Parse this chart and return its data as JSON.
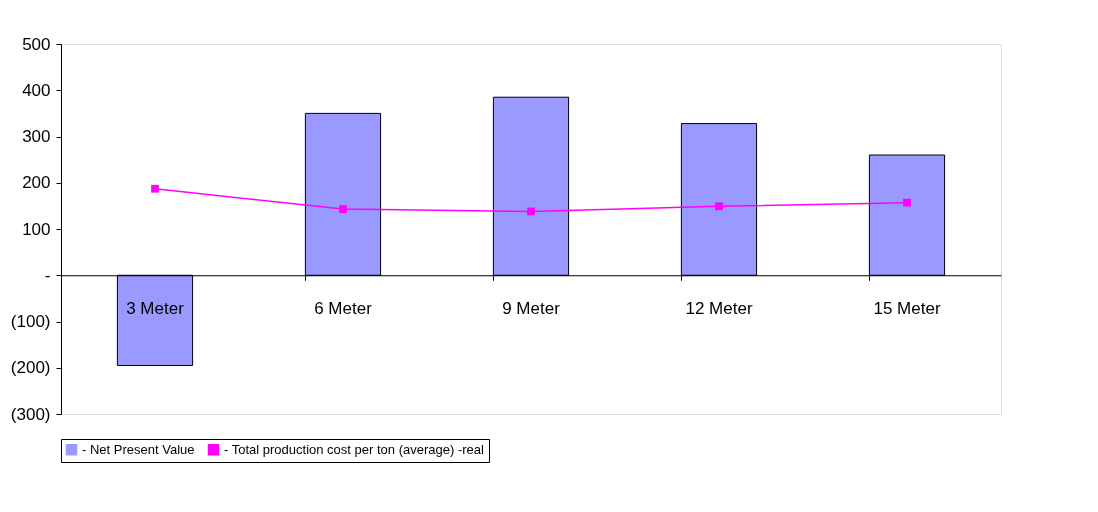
{
  "chart_data": {
    "type": "bar",
    "categories": [
      "3 Meter",
      "6 Meter",
      "9 Meter",
      "12 Meter",
      "15 Meter"
    ],
    "series": [
      {
        "name": "- Net Present Value",
        "color": "#9999ff",
        "values": [
          -195,
          350,
          385,
          328,
          260
        ]
      },
      {
        "name": "- Total production cost per ton (average) -real",
        "type": "line",
        "color": "#ff00ff",
        "marker": "square",
        "values": [
          187,
          143,
          138,
          149,
          157
        ]
      }
    ],
    "ylim": [
      -300,
      500
    ],
    "yticks": [
      {
        "value": -300,
        "label": "(300)"
      },
      {
        "value": -200,
        "label": "(200)"
      },
      {
        "value": -100,
        "label": "(100)"
      },
      {
        "value": 0,
        "label": "-"
      },
      100,
      200,
      300,
      400,
      500
    ],
    "grid": false,
    "legend": "bottom"
  }
}
